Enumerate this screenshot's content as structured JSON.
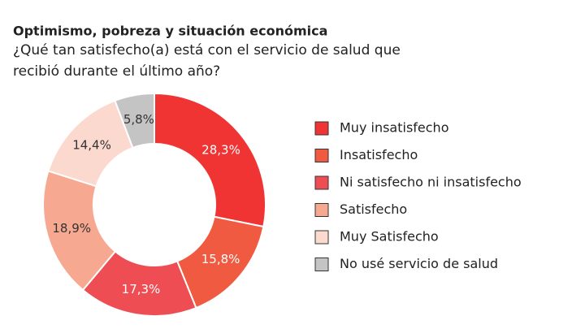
{
  "chart_data": {
    "type": "donut",
    "title": "Optimismo, pobreza y situación económica",
    "subtitle": [
      "¿Qué tan satisfecho(a) está con el servicio de salud que",
      "recibió durante el último año?"
    ],
    "categories": [
      "Muy insatisfecho",
      "Insatisfecho",
      "Ni satisfecho ni insatisfecho",
      "Satisfecho",
      "Muy Satisfecho",
      "No usé servicio de salud"
    ],
    "values": [
      28.3,
      15.8,
      17.3,
      18.9,
      14.4,
      5.8
    ],
    "value_labels": [
      "28,3%",
      "15,8%",
      "17,3%",
      "18,9%",
      "14,4%",
      "5,8%"
    ],
    "colors": [
      "#f03434",
      "#f05a40",
      "#ef4d54",
      "#f7a890",
      "#fcd9cf",
      "#c4c4c4"
    ],
    "legend": "right"
  }
}
